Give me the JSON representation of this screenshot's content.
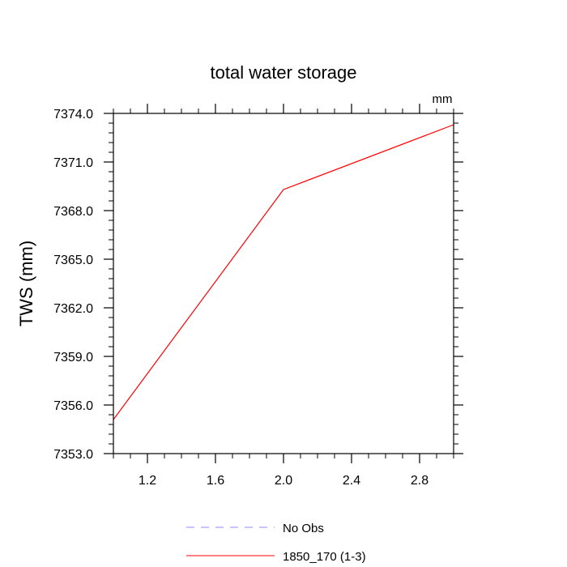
{
  "chart_data": {
    "type": "line",
    "title": "total water storage",
    "units_label": "mm",
    "xlabel": "",
    "ylabel": "TWS  (mm)",
    "xlim": [
      1.0,
      3.0
    ],
    "ylim": [
      7353.0,
      7374.0
    ],
    "x_ticks": [
      1.2,
      1.6,
      2.0,
      2.4,
      2.8
    ],
    "x_tick_labels": [
      "1.2",
      "1.6",
      "2.0",
      "2.4",
      "2.8"
    ],
    "y_ticks": [
      7353.0,
      7356.0,
      7359.0,
      7362.0,
      7365.0,
      7368.0,
      7371.0,
      7374.0
    ],
    "y_tick_labels": [
      "7353.0",
      "7356.0",
      "7359.0",
      "7362.0",
      "7365.0",
      "7368.0",
      "7371.0",
      "7374.0"
    ],
    "grid": false,
    "legend_position": "bottom",
    "series": [
      {
        "name": "No Obs",
        "color": "#8c8cff",
        "dash": "dashed",
        "x": [],
        "y": []
      },
      {
        "name": "1850_170 (1-3)",
        "color": "#ff0000",
        "dash": "solid",
        "x": [
          1.0,
          2.0,
          3.0
        ],
        "y": [
          7355.1,
          7369.3,
          7373.3
        ]
      }
    ]
  }
}
